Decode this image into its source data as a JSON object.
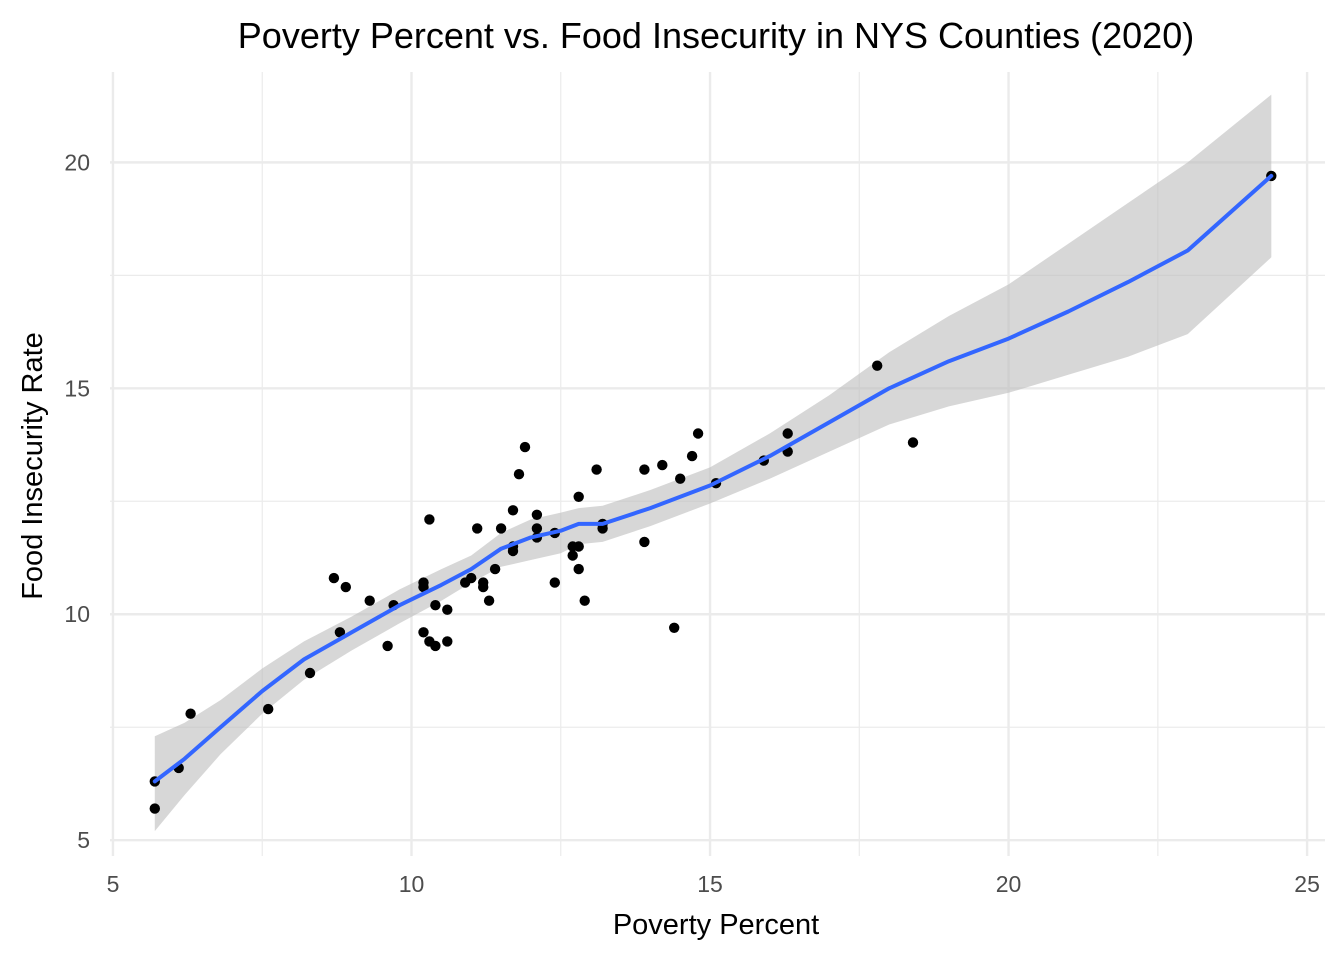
{
  "chart_data": {
    "type": "scatter",
    "title": "Poverty Percent vs. Food Insecurity in NYS Counties (2020)",
    "xlabel": "Poverty Percent",
    "ylabel": "Food Insecurity Rate",
    "xlim": [
      4.95,
      25.3
    ],
    "ylim": [
      4.65,
      22.0
    ],
    "x_ticks": [
      5,
      10,
      15,
      20,
      25
    ],
    "x_tick_labels": [
      "5",
      "10",
      "15",
      "20",
      "25"
    ],
    "y_ticks": [
      5,
      10,
      15,
      20
    ],
    "y_tick_labels": [
      "5",
      "10",
      "15",
      "20"
    ],
    "x_minor_ticks": [
      7.5,
      12.5,
      17.5,
      22.5
    ],
    "y_minor_ticks": [
      7.5,
      12.5,
      17.5
    ],
    "grid": true,
    "legend": "none",
    "colors": {
      "points": "#000000",
      "smooth_line": "#3366ff",
      "ribbon": "#bdbdbd",
      "grid": "#ebebeb"
    },
    "points": [
      {
        "x": 5.7,
        "y": 6.3
      },
      {
        "x": 5.7,
        "y": 5.7
      },
      {
        "x": 6.1,
        "y": 6.6
      },
      {
        "x": 6.3,
        "y": 7.8
      },
      {
        "x": 7.6,
        "y": 7.9
      },
      {
        "x": 8.3,
        "y": 8.7
      },
      {
        "x": 8.7,
        "y": 10.8
      },
      {
        "x": 8.8,
        "y": 9.6
      },
      {
        "x": 8.9,
        "y": 10.6
      },
      {
        "x": 9.3,
        "y": 10.3
      },
      {
        "x": 9.6,
        "y": 9.3
      },
      {
        "x": 9.7,
        "y": 10.2
      },
      {
        "x": 10.2,
        "y": 10.7
      },
      {
        "x": 10.2,
        "y": 10.6
      },
      {
        "x": 10.2,
        "y": 9.6
      },
      {
        "x": 10.3,
        "y": 9.4
      },
      {
        "x": 10.3,
        "y": 12.1
      },
      {
        "x": 10.4,
        "y": 10.2
      },
      {
        "x": 10.4,
        "y": 9.3
      },
      {
        "x": 10.6,
        "y": 10.1
      },
      {
        "x": 10.6,
        "y": 9.4
      },
      {
        "x": 10.9,
        "y": 10.7
      },
      {
        "x": 11.0,
        "y": 10.8
      },
      {
        "x": 11.1,
        "y": 11.9
      },
      {
        "x": 11.2,
        "y": 10.7
      },
      {
        "x": 11.2,
        "y": 10.6
      },
      {
        "x": 11.3,
        "y": 10.3
      },
      {
        "x": 11.4,
        "y": 11.0
      },
      {
        "x": 11.5,
        "y": 11.9
      },
      {
        "x": 11.7,
        "y": 12.3
      },
      {
        "x": 11.7,
        "y": 11.5
      },
      {
        "x": 11.7,
        "y": 11.4
      },
      {
        "x": 11.8,
        "y": 13.1
      },
      {
        "x": 11.9,
        "y": 13.7
      },
      {
        "x": 12.1,
        "y": 12.2
      },
      {
        "x": 12.1,
        "y": 11.9
      },
      {
        "x": 12.1,
        "y": 11.7
      },
      {
        "x": 12.4,
        "y": 11.8
      },
      {
        "x": 12.4,
        "y": 10.7
      },
      {
        "x": 12.7,
        "y": 11.5
      },
      {
        "x": 12.7,
        "y": 11.3
      },
      {
        "x": 12.8,
        "y": 12.6
      },
      {
        "x": 12.8,
        "y": 11.5
      },
      {
        "x": 12.8,
        "y": 11.0
      },
      {
        "x": 12.9,
        "y": 10.3
      },
      {
        "x": 13.1,
        "y": 13.2
      },
      {
        "x": 13.2,
        "y": 12.0
      },
      {
        "x": 13.2,
        "y": 11.9
      },
      {
        "x": 13.9,
        "y": 13.2
      },
      {
        "x": 13.9,
        "y": 11.6
      },
      {
        "x": 14.2,
        "y": 13.3
      },
      {
        "x": 14.4,
        "y": 9.7
      },
      {
        "x": 14.5,
        "y": 13.0
      },
      {
        "x": 14.7,
        "y": 13.5
      },
      {
        "x": 14.8,
        "y": 14.0
      },
      {
        "x": 15.1,
        "y": 12.9
      },
      {
        "x": 15.9,
        "y": 13.4
      },
      {
        "x": 16.3,
        "y": 14.0
      },
      {
        "x": 16.3,
        "y": 13.6
      },
      {
        "x": 17.8,
        "y": 15.5
      },
      {
        "x": 18.4,
        "y": 13.8
      },
      {
        "x": 24.4,
        "y": 19.7
      }
    ],
    "smooth": {
      "method": "loess",
      "x": [
        5.7,
        6.2,
        6.8,
        7.5,
        8.2,
        9.0,
        9.8,
        10.5,
        11.0,
        11.5,
        12.0,
        12.5,
        12.8,
        13.2,
        14.0,
        15.0,
        16.0,
        17.0,
        18.0,
        19.0,
        20.0,
        21.0,
        22.0,
        23.0,
        24.4
      ],
      "y": [
        6.3,
        6.8,
        7.5,
        8.3,
        9.0,
        9.6,
        10.2,
        10.65,
        11.0,
        11.45,
        11.7,
        11.85,
        12.0,
        12.0,
        12.35,
        12.85,
        13.5,
        14.25,
        15.0,
        15.6,
        16.1,
        16.7,
        17.35,
        18.05,
        19.7
      ],
      "upper": [
        7.3,
        7.6,
        8.1,
        8.8,
        9.4,
        9.95,
        10.55,
        11.0,
        11.3,
        11.8,
        12.1,
        12.25,
        12.35,
        12.4,
        12.75,
        13.25,
        14.0,
        14.85,
        15.8,
        16.6,
        17.3,
        18.2,
        19.1,
        20.0,
        21.5
      ],
      "lower": [
        5.2,
        6.0,
        6.9,
        7.8,
        8.55,
        9.2,
        9.8,
        10.3,
        10.7,
        11.05,
        11.2,
        11.35,
        11.55,
        11.6,
        11.95,
        12.45,
        13.0,
        13.6,
        14.2,
        14.6,
        14.9,
        15.3,
        15.7,
        16.2,
        17.9
      ]
    }
  }
}
